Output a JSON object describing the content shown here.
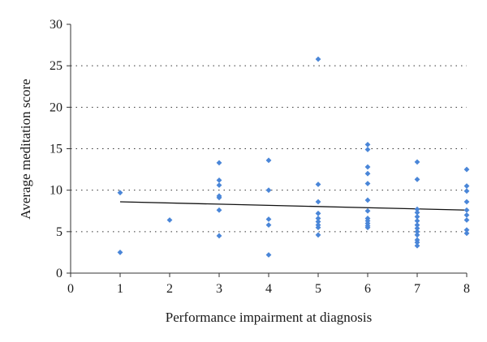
{
  "chart_data": {
    "type": "scatter",
    "title": "",
    "xlabel": "Performance impairment at diagnosis",
    "ylabel": "Average meditation score",
    "xlim": [
      0,
      8
    ],
    "ylim": [
      0,
      30
    ],
    "x_ticks": [
      0,
      1,
      2,
      3,
      4,
      5,
      6,
      7,
      8
    ],
    "y_ticks": [
      0,
      5,
      10,
      15,
      20,
      25,
      30
    ],
    "grid": "horizontal dotted",
    "marker_color": "#4a86d8",
    "trend_color": "#111111",
    "points": [
      {
        "x": 1,
        "y": 9.7
      },
      {
        "x": 1,
        "y": 2.5
      },
      {
        "x": 2,
        "y": 6.4
      },
      {
        "x": 3,
        "y": 13.3
      },
      {
        "x": 3,
        "y": 11.2
      },
      {
        "x": 3,
        "y": 10.6
      },
      {
        "x": 3,
        "y": 9.3
      },
      {
        "x": 3,
        "y": 9.1
      },
      {
        "x": 3,
        "y": 7.6
      },
      {
        "x": 3,
        "y": 4.5
      },
      {
        "x": 4,
        "y": 13.6
      },
      {
        "x": 4,
        "y": 10.0
      },
      {
        "x": 4,
        "y": 6.5
      },
      {
        "x": 4,
        "y": 5.8
      },
      {
        "x": 4,
        "y": 2.2
      },
      {
        "x": 5,
        "y": 25.8
      },
      {
        "x": 5,
        "y": 10.7
      },
      {
        "x": 5,
        "y": 8.6
      },
      {
        "x": 5,
        "y": 7.2
      },
      {
        "x": 5,
        "y": 6.6
      },
      {
        "x": 5,
        "y": 6.2
      },
      {
        "x": 5,
        "y": 5.8
      },
      {
        "x": 5,
        "y": 5.5
      },
      {
        "x": 5,
        "y": 4.6
      },
      {
        "x": 6,
        "y": 15.5
      },
      {
        "x": 6,
        "y": 14.9
      },
      {
        "x": 6,
        "y": 12.8
      },
      {
        "x": 6,
        "y": 12.0
      },
      {
        "x": 6,
        "y": 10.8
      },
      {
        "x": 6,
        "y": 8.8
      },
      {
        "x": 6,
        "y": 7.5
      },
      {
        "x": 6,
        "y": 6.6
      },
      {
        "x": 6,
        "y": 6.3
      },
      {
        "x": 6,
        "y": 6.0
      },
      {
        "x": 6,
        "y": 5.7
      },
      {
        "x": 6,
        "y": 5.5
      },
      {
        "x": 7,
        "y": 13.4
      },
      {
        "x": 7,
        "y": 11.3
      },
      {
        "x": 7,
        "y": 7.7
      },
      {
        "x": 7,
        "y": 7.3
      },
      {
        "x": 7,
        "y": 6.8
      },
      {
        "x": 7,
        "y": 6.3
      },
      {
        "x": 7,
        "y": 5.8
      },
      {
        "x": 7,
        "y": 5.4
      },
      {
        "x": 7,
        "y": 5.0
      },
      {
        "x": 7,
        "y": 4.6
      },
      {
        "x": 7,
        "y": 4.0
      },
      {
        "x": 7,
        "y": 3.7
      },
      {
        "x": 7,
        "y": 3.3
      },
      {
        "x": 8,
        "y": 12.5
      },
      {
        "x": 8,
        "y": 10.5
      },
      {
        "x": 8,
        "y": 9.9
      },
      {
        "x": 8,
        "y": 8.6
      },
      {
        "x": 8,
        "y": 7.6
      },
      {
        "x": 8,
        "y": 7.0
      },
      {
        "x": 8,
        "y": 6.4
      },
      {
        "x": 8,
        "y": 5.2
      },
      {
        "x": 8,
        "y": 4.8
      }
    ],
    "trend_line": {
      "x": [
        1,
        8
      ],
      "y": [
        8.6,
        7.6
      ]
    }
  }
}
